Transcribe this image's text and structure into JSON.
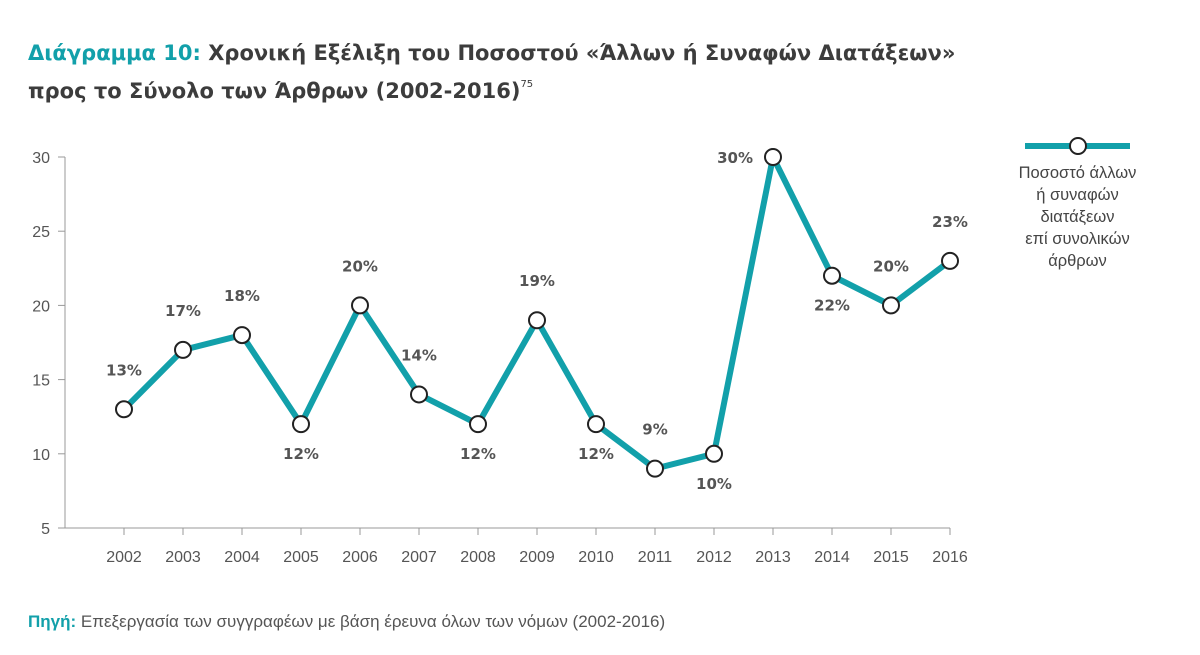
{
  "title": {
    "prefix": "Διάγραμμα 10:",
    "line1": "Χρονική Εξέλιξη του Ποσοστού «Άλλων ή Συναφών Διατάξεων»",
    "line2": "προς το Σύνολο των Άρθρων (2002-2016)",
    "footnote": "75"
  },
  "legend": {
    "lines": [
      "Ποσοστό άλλων",
      "ή συναφών",
      "διατάξεων",
      "επί συνολικών",
      "άρθρων"
    ]
  },
  "source": {
    "label": "Πηγή:",
    "text": "Επεξεργασία των συγγραφέων με βάση έρευνα όλων των νόμων (2002-2016)"
  },
  "colors": {
    "line": "#12a0aa",
    "accent": "#12a0aa"
  },
  "chart_data": {
    "type": "line",
    "categories": [
      "2002",
      "2003",
      "2004",
      "2005",
      "2006",
      "2007",
      "2008",
      "2009",
      "2010",
      "2011",
      "2012",
      "2013",
      "2014",
      "2015",
      "2016"
    ],
    "series": [
      {
        "name": "Ποσοστό άλλων ή συναφών διατάξεων επί συνολικών άρθρων",
        "values": [
          13,
          17,
          18,
          12,
          20,
          14,
          12,
          19,
          12,
          9,
          10,
          30,
          22,
          20,
          23
        ],
        "labels": [
          "13%",
          "17%",
          "18%",
          "12%",
          "20%",
          "14%",
          "12%",
          "19%",
          "12%",
          "9%",
          "10%",
          "30%",
          "22%",
          "20%",
          "23%"
        ],
        "label_side": [
          "above",
          "above",
          "above",
          "below",
          "above",
          "above",
          "below",
          "above",
          "below",
          "above",
          "below",
          "left",
          "below",
          "above",
          "above"
        ]
      }
    ],
    "y_ticks": [
      5,
      10,
      15,
      20,
      25,
      30
    ],
    "ylim": [
      5,
      30
    ],
    "grid": false,
    "legend_position": "right"
  }
}
